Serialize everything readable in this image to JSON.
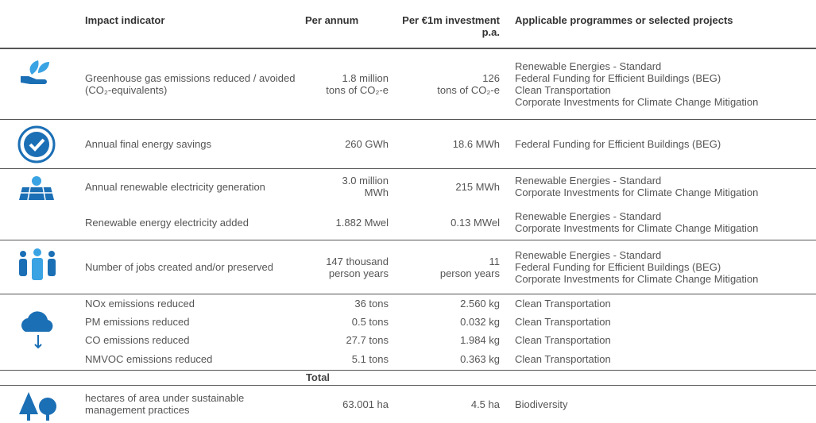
{
  "header": [
    "Impact indicator",
    "Per annum",
    "Per €1m investment p.a.",
    "Applicable programmes or selected projects"
  ],
  "groups": [
    {
      "rows": [
        {
          "indicator": "Greenhouse gas emissions reduced / avoided (CO₂-equivalents)",
          "per_annum": [
            "1.8 million",
            "tons of CO₂-e"
          ],
          "per_1m": [
            "126",
            "tons of CO₂-e"
          ],
          "programmes": [
            "Renewable Energies - Standard",
            "Federal Funding for Efficient Buildings (BEG)",
            "Clean Transportation",
            "Corporate Investments for Climate Change Mitigation"
          ]
        }
      ]
    },
    {
      "rows": [
        {
          "indicator": "Annual final energy savings",
          "per_annum": [
            "260 GWh"
          ],
          "per_1m": [
            "18.6 MWh"
          ],
          "programmes": [
            "Federal Funding for Efficient Buildings (BEG)"
          ]
        }
      ]
    },
    {
      "rows": [
        {
          "indicator": "Annual renewable electricity generation",
          "per_annum": [
            "3.0 million",
            "MWh"
          ],
          "per_1m": [
            "215 MWh"
          ],
          "programmes": [
            "Renewable Energies - Standard",
            "Corporate Investments for Climate Change Mitigation"
          ]
        },
        {
          "indicator": "Renewable energy electricity added",
          "per_annum": [
            "1.882 Mwel"
          ],
          "per_1m": [
            "0.13 MWel"
          ],
          "programmes": [
            "Renewable Energies - Standard",
            "Corporate Investments for Climate Change Mitigation"
          ]
        }
      ]
    },
    {
      "rows": [
        {
          "indicator": "Number of jobs created and/or preserved",
          "per_annum": [
            "147 thousand",
            "person years"
          ],
          "per_1m": [
            "11",
            "person years"
          ],
          "programmes": [
            "Renewable Energies - Standard",
            "Federal Funding for Efficient Buildings (BEG)",
            "Corporate Investments for Climate Change Mitigation"
          ]
        }
      ]
    },
    {
      "rows": [
        {
          "indicator": "NOx emissions reduced",
          "per_annum": [
            "36 tons"
          ],
          "per_1m": [
            "2.560 kg"
          ],
          "programmes": [
            "Clean Transportation"
          ]
        },
        {
          "indicator": "PM emissions reduced",
          "per_annum": [
            "0.5 tons"
          ],
          "per_1m": [
            "0.032 kg"
          ],
          "programmes": [
            "Clean Transportation"
          ]
        },
        {
          "indicator": "CO emissions reduced",
          "per_annum": [
            "27.7 tons"
          ],
          "per_1m": [
            "1.984 kg"
          ],
          "programmes": [
            "Clean Transportation"
          ]
        },
        {
          "indicator": "NMVOC emissions reduced",
          "per_annum": [
            "5.1 tons"
          ],
          "per_1m": [
            "0.363 kg"
          ],
          "programmes": [
            "Clean Transportation"
          ]
        }
      ]
    },
    {
      "rows": [
        {
          "indicator": "hectares of area under sustainable management practices",
          "per_annum": [
            "63.001 ha"
          ],
          "per_1m": [
            "4.5 ha"
          ],
          "programmes": [
            "Biodiversity"
          ]
        }
      ]
    }
  ],
  "total_label": "Total"
}
